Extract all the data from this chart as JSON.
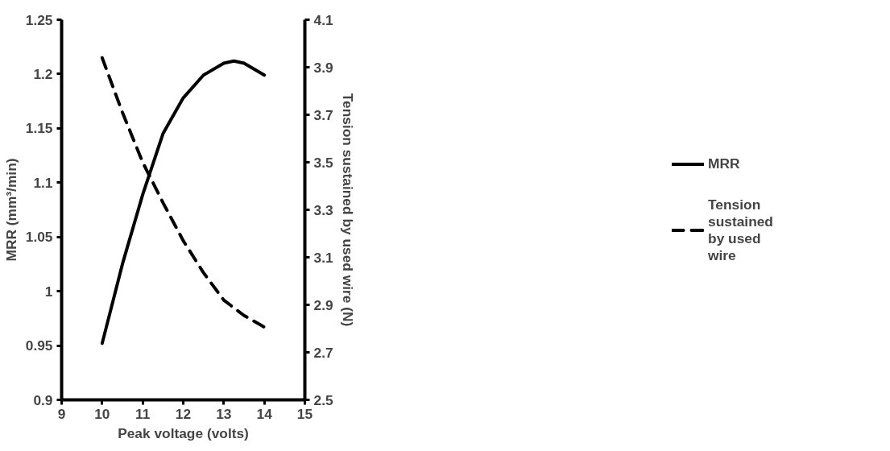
{
  "chart_data": {
    "type": "line",
    "xlabel": "Peak voltage (volts)",
    "ylabel": "MRR (mm³/min)",
    "y2label": "Tension sustained by used wire (N)",
    "xlim": [
      9,
      15
    ],
    "xticks": [
      9,
      10,
      11,
      12,
      13,
      14,
      15
    ],
    "ylim": [
      0.9,
      1.25
    ],
    "yticks": [
      {
        "value": 0.9,
        "label": "0.9"
      },
      {
        "value": 0.95,
        "label": "0.95"
      },
      {
        "value": 1,
        "label": "1"
      },
      {
        "value": 1.05,
        "label": "1.05"
      },
      {
        "value": 1.1,
        "label": "1.1"
      },
      {
        "value": 1.15,
        "label": "1.15"
      },
      {
        "value": 1.2,
        "label": "1.2"
      },
      {
        "value": 1.25,
        "label": "1.25"
      }
    ],
    "y2lim": [
      2.5,
      4.1
    ],
    "y2ticks": [
      {
        "value": 2.5,
        "label": "2.5"
      },
      {
        "value": 2.7,
        "label": "2.7"
      },
      {
        "value": 2.9,
        "label": "2.9"
      },
      {
        "value": 3.1,
        "label": "3.1"
      },
      {
        "value": 3.3,
        "label": "3.3"
      },
      {
        "value": 3.5,
        "label": "3.5"
      },
      {
        "value": 3.7,
        "label": "3.7"
      },
      {
        "value": 3.9,
        "label": "3.9"
      },
      {
        "value": 4.1,
        "label": "4.1"
      }
    ],
    "grid": false,
    "legend": "right",
    "marker": "none",
    "series": [
      {
        "name": "MRR",
        "color": "#000000",
        "line_style": "solid",
        "x": [
          10,
          10.5,
          11,
          11.5,
          12,
          12.5,
          13,
          13.25,
          13.5,
          14
        ],
        "values": [
          0.952,
          1.025,
          1.089,
          1.145,
          1.178,
          1.199,
          1.21,
          1.212,
          1.21,
          1.199
        ]
      },
      {
        "name": "Tension sustained by used wire",
        "color": "#000000",
        "line_style": "dashed",
        "axis": "y2",
        "x": [
          10,
          10.5,
          11,
          11.5,
          12,
          12.5,
          13,
          13.5,
          14
        ],
        "values": [
          3.94,
          3.71,
          3.5,
          3.33,
          3.17,
          3.035,
          2.92,
          2.855,
          2.806
        ]
      }
    ]
  }
}
